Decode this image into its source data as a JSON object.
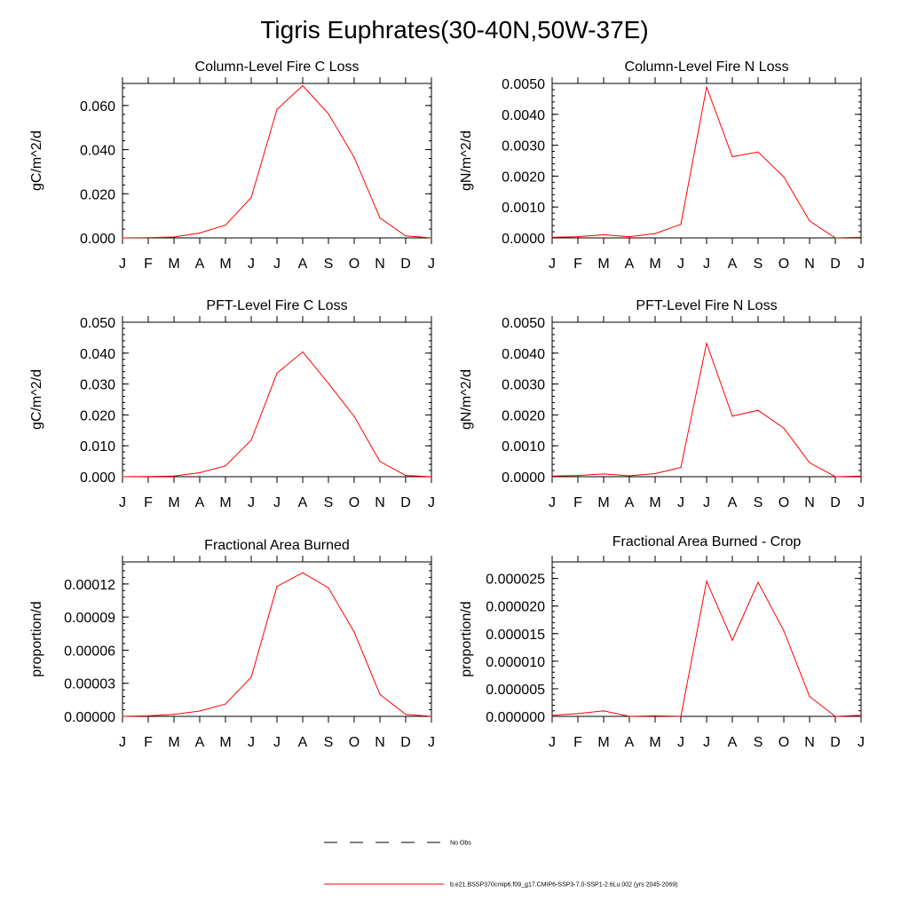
{
  "figure": {
    "title": "Tigris Euphrates(30-40N,50W-37E)"
  },
  "legend": {
    "items": [
      {
        "label": "No Obs",
        "color": "#000000",
        "style": "dashed"
      },
      {
        "label": "b.e21.BSSP370cmip6.f09_g17.CMIP6-SSP3-7.0-SSP1-2.6Lu.002 (yrs 2045-2069)",
        "color": "#ff0000",
        "style": "solid"
      }
    ]
  },
  "chart_data": [
    {
      "type": "line",
      "title": "Column-Level Fire C Loss",
      "ylabel": "gC/m^2/d",
      "x": [
        "J",
        "F",
        "M",
        "A",
        "M",
        "J",
        "J",
        "A",
        "S",
        "O",
        "N",
        "D",
        "J"
      ],
      "ylim": [
        0,
        0.07
      ],
      "yticks": [
        0,
        0.02,
        0.04,
        0.06
      ],
      "ytick_labels": [
        "0.000",
        "0.020",
        "0.040",
        "0.060"
      ],
      "series": [
        {
          "color": "#ff0000",
          "values": [
            0.0,
            0.0001,
            0.0004,
            0.0022,
            0.0058,
            0.0183,
            0.0582,
            0.069,
            0.0562,
            0.0365,
            0.0091,
            0.0009,
            0.0
          ]
        }
      ]
    },
    {
      "type": "line",
      "title": "Column-Level Fire N Loss",
      "ylabel": "gN/m^2/d",
      "x": [
        "J",
        "F",
        "M",
        "A",
        "M",
        "J",
        "J",
        "A",
        "S",
        "O",
        "N",
        "D",
        "J"
      ],
      "ylim": [
        0,
        0.005
      ],
      "yticks": [
        0,
        0.001,
        0.002,
        0.003,
        0.004,
        0.005
      ],
      "ytick_labels": [
        "0.0000",
        "0.0010",
        "0.0020",
        "0.0030",
        "0.0040",
        "0.0050"
      ],
      "series": [
        {
          "color": "#ff0000",
          "values": [
            2e-05,
            4e-05,
            0.0001,
            4e-05,
            0.00014,
            0.00044,
            0.00488,
            0.00263,
            0.00278,
            0.00197,
            0.00055,
            0.0,
            2e-05
          ]
        }
      ]
    },
    {
      "type": "line",
      "title": "PFT-Level Fire C Loss",
      "ylabel": "gC/m^2/d",
      "x": [
        "J",
        "F",
        "M",
        "A",
        "M",
        "J",
        "J",
        "A",
        "S",
        "O",
        "N",
        "D",
        "J"
      ],
      "ylim": [
        0,
        0.05
      ],
      "yticks": [
        0,
        0.01,
        0.02,
        0.03,
        0.04,
        0.05
      ],
      "ytick_labels": [
        "0.000",
        "0.010",
        "0.020",
        "0.030",
        "0.040",
        "0.050"
      ],
      "series": [
        {
          "color": "#ff0000",
          "values": [
            0.0,
            5e-05,
            0.0002,
            0.0013,
            0.0035,
            0.0118,
            0.0335,
            0.0404,
            0.0302,
            0.0195,
            0.0049,
            0.0004,
            0.0
          ]
        }
      ]
    },
    {
      "type": "line",
      "title": "PFT-Level Fire N Loss",
      "ylabel": "gN/m^2/d",
      "x": [
        "J",
        "F",
        "M",
        "A",
        "M",
        "J",
        "J",
        "A",
        "S",
        "O",
        "N",
        "D",
        "J"
      ],
      "ylim": [
        0,
        0.005
      ],
      "yticks": [
        0,
        0.001,
        0.002,
        0.003,
        0.004,
        0.005
      ],
      "ytick_labels": [
        "0.0000",
        "0.0010",
        "0.0020",
        "0.0030",
        "0.0040",
        "0.0050"
      ],
      "series": [
        {
          "color": "#ff0000",
          "values": [
            2e-05,
            4e-05,
            9e-05,
            3e-05,
            0.0001,
            0.0003,
            0.00432,
            0.00196,
            0.00215,
            0.00157,
            0.00045,
            0.0,
            2e-05
          ]
        }
      ]
    },
    {
      "type": "line",
      "title": "Fractional Area Burned",
      "ylabel": "proportion/d",
      "x": [
        "J",
        "F",
        "M",
        "A",
        "M",
        "J",
        "J",
        "A",
        "S",
        "O",
        "N",
        "D",
        "J"
      ],
      "ylim": [
        0,
        0.00014
      ],
      "yticks": [
        0,
        3e-05,
        6e-05,
        9e-05,
        0.00012
      ],
      "ytick_labels": [
        "0.00000",
        "0.00003",
        "0.00006",
        "0.00009",
        "0.00012"
      ],
      "series": [
        {
          "color": "#ff0000",
          "values": [
            0.0,
            5e-07,
            1.8e-06,
            4.8e-06,
            1.12e-05,
            3.55e-05,
            0.0001178,
            0.0001302,
            0.0001165,
            7.64e-05,
            1.99e-05,
            1.8e-06,
            0.0
          ]
        }
      ]
    },
    {
      "type": "line",
      "title": "Fractional Area Burned - Crop",
      "ylabel": "proportion/d",
      "x": [
        "J",
        "F",
        "M",
        "A",
        "M",
        "J",
        "J",
        "A",
        "S",
        "O",
        "N",
        "D",
        "J"
      ],
      "ylim": [
        0,
        2.8e-05
      ],
      "yticks": [
        0,
        5e-06,
        1e-05,
        1.5e-05,
        2e-05,
        2.5e-05
      ],
      "ytick_labels": [
        "0.000000",
        "0.000005",
        "0.000010",
        "0.000015",
        "0.000020",
        "0.000025"
      ],
      "series": [
        {
          "color": "#ff0000",
          "values": [
            2e-07,
            5e-07,
            1e-06,
            0.0,
            1e-07,
            0.0,
            2.45e-05,
            1.38e-05,
            2.43e-05,
            1.55e-05,
            3.6e-06,
            0.0,
            2e-07
          ]
        }
      ]
    }
  ]
}
